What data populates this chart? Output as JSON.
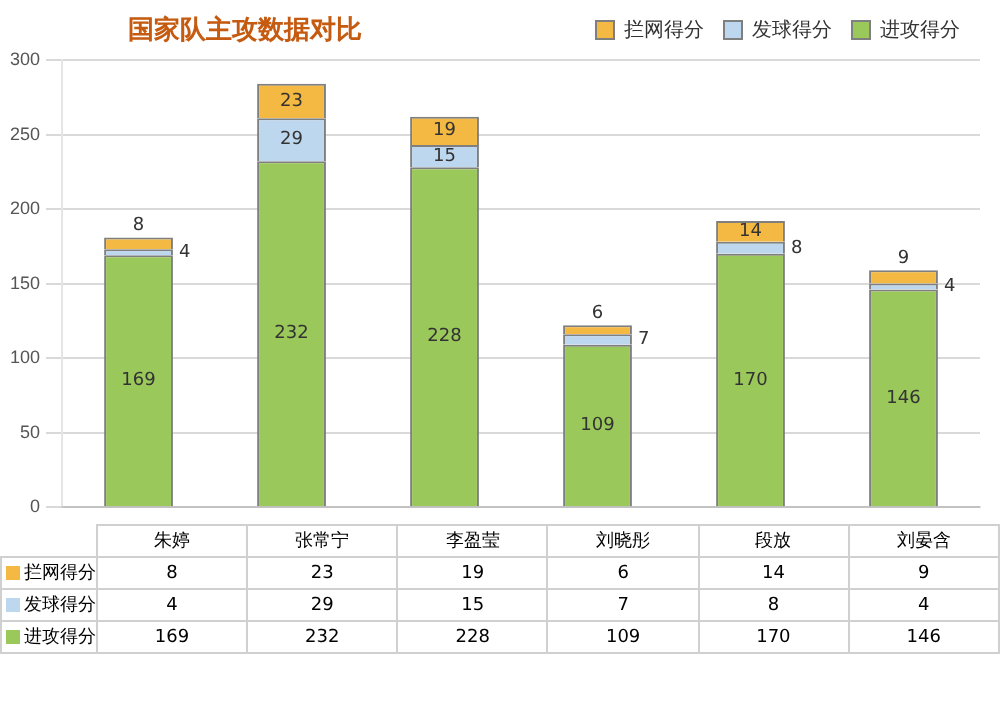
{
  "chart_data": {
    "type": "bar",
    "title": "国家队主攻数据对比",
    "stacked": true,
    "categories": [
      "朱婷",
      "张常宁",
      "李盈莹",
      "刘晓彤",
      "段放",
      "刘晏含"
    ],
    "series": [
      {
        "name": "进攻得分",
        "color": "#9bc85a",
        "values": [
          169,
          232,
          228,
          109,
          170,
          146
        ],
        "value_labels": [
          "169",
          "232",
          "228",
          "109",
          "170",
          "146"
        ]
      },
      {
        "name": "发球得分",
        "color": "#bdd7ee",
        "values": [
          4,
          29,
          15,
          7,
          8,
          4
        ],
        "value_labels": [
          "4",
          "29",
          "15",
          "7",
          "8",
          "4"
        ]
      },
      {
        "name": "拦网得分",
        "color": "#f4b942",
        "values": [
          8,
          23,
          19,
          6,
          14,
          9
        ],
        "value_labels": [
          "8",
          "23",
          "19",
          "6",
          "14",
          "9"
        ]
      }
    ],
    "ylim": [
      0,
      300
    ],
    "yticks": [
      0,
      50,
      100,
      150,
      200,
      250,
      300
    ],
    "grid": "y",
    "legend": "top right"
  }
}
